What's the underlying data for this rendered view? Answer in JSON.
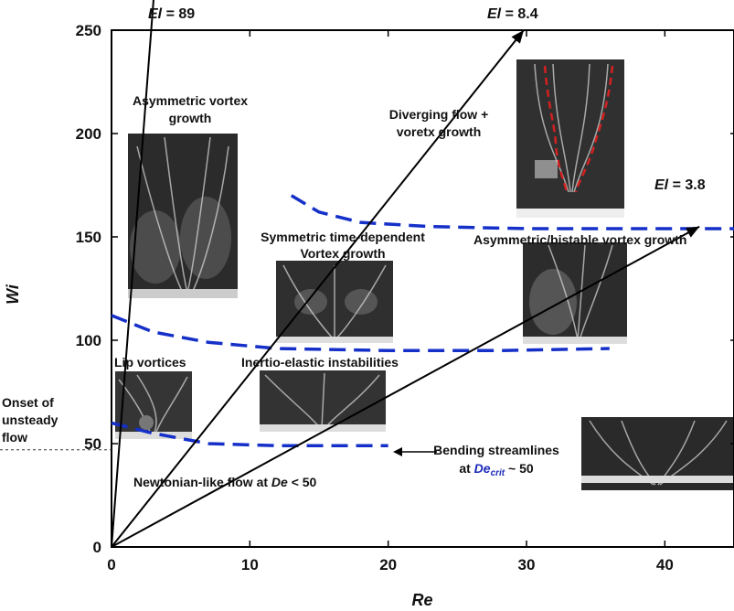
{
  "chart_data": {
    "type": "line",
    "xlabel": "Re",
    "ylabel": "Wi",
    "xlim": [
      0,
      45
    ],
    "ylim": [
      0,
      250
    ],
    "x_ticks": [
      "0",
      "10",
      "20",
      "30",
      "40"
    ],
    "y_ticks": [
      "0",
      "50",
      "100",
      "150",
      "200",
      "250"
    ],
    "el_lines": [
      {
        "prefix": "El",
        "label": " = 89",
        "points": [
          [
            0,
            0
          ],
          [
            3.5,
            305
          ]
        ]
      },
      {
        "prefix": "El",
        "label": " = 8.4",
        "points": [
          [
            0,
            0
          ],
          [
            29.8,
            250
          ]
        ]
      },
      {
        "prefix": "El",
        "label": " = 3.8",
        "points": [
          [
            0,
            0
          ],
          [
            42.5,
            155
          ]
        ]
      }
    ],
    "regime_boundaries": [
      {
        "points": [
          [
            0,
            60
          ],
          [
            3,
            55
          ],
          [
            7,
            50
          ],
          [
            12,
            49
          ],
          [
            20,
            49
          ]
        ]
      },
      {
        "points": [
          [
            0,
            112
          ],
          [
            3,
            104
          ],
          [
            7,
            99
          ],
          [
            12,
            96
          ],
          [
            20,
            95
          ],
          [
            28,
            95
          ],
          [
            36,
            96
          ]
        ]
      },
      {
        "points": [
          [
            13,
            170
          ],
          [
            15,
            162
          ],
          [
            18,
            157
          ],
          [
            23,
            155
          ],
          [
            30,
            154
          ],
          [
            40,
            154
          ],
          [
            45,
            154
          ]
        ]
      }
    ],
    "onset_line": {
      "y": 47
    },
    "annotations": {
      "onset": [
        "Onset of",
        "unsteady",
        "flow"
      ],
      "lip": "Lip vortices",
      "asym": [
        "Asymmetric vortex",
        "growth"
      ],
      "sym": [
        "Symmetric time-dependent",
        "Vortex growth"
      ],
      "inertio": "Inertio-elastic instabilities",
      "diverging": [
        "Diverging flow +",
        "voretx growth"
      ],
      "bistable": "Asymmetric/bistable vortex growth",
      "newtonian_prefix": "Newtonian-like flow at ",
      "newtonian_var": "De",
      "newtonian_suffix": " < 50",
      "bending_line1": "Bending streamlines",
      "bending_at": "at ",
      "bending_var": "De",
      "bending_sub": "crit",
      "bending_suffix": " ~ 50"
    }
  }
}
